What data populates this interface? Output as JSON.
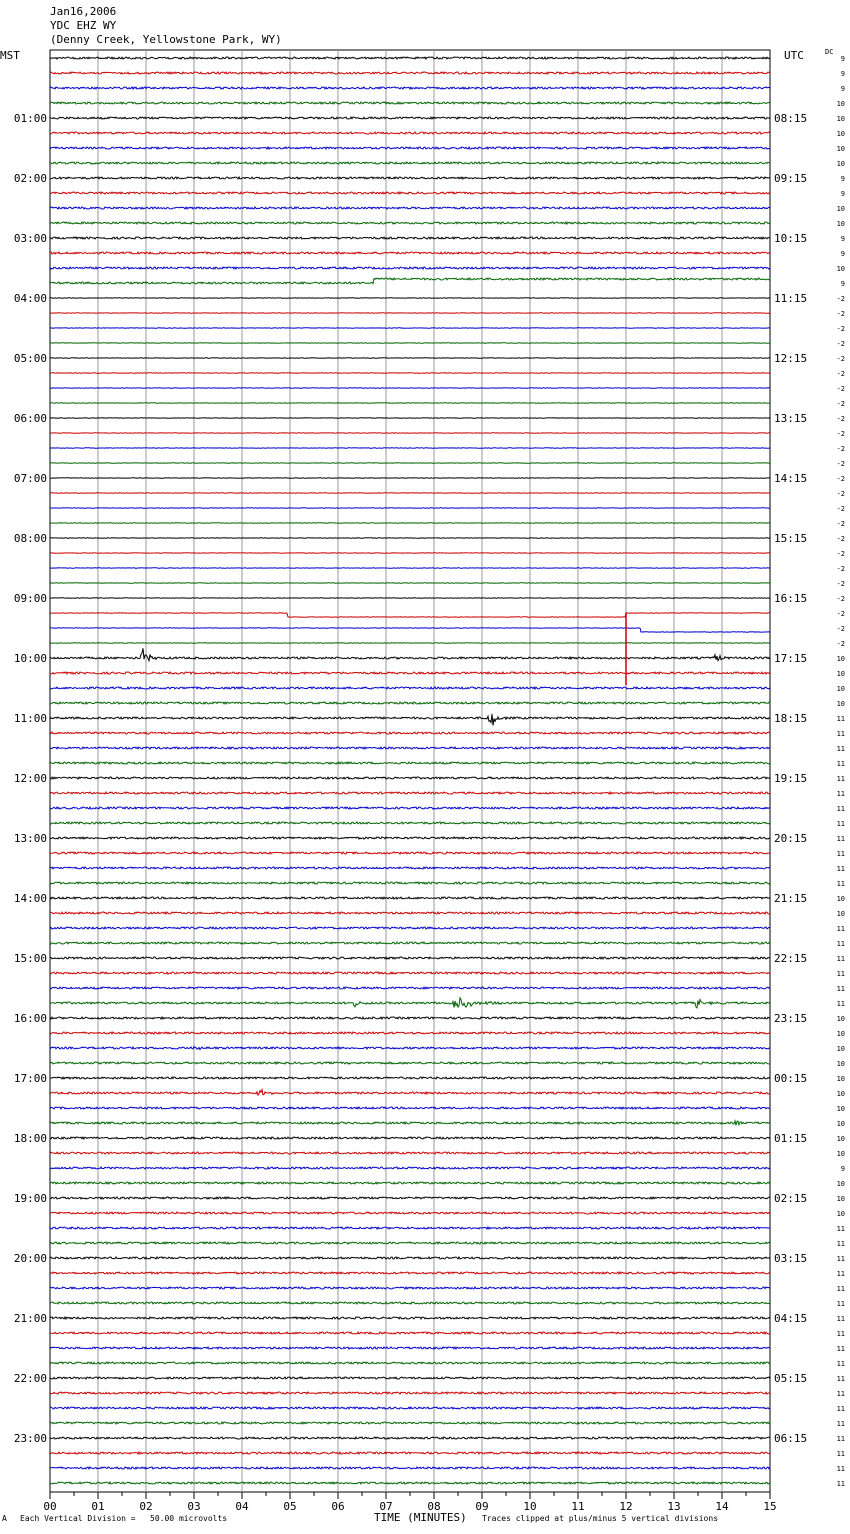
{
  "header": {
    "date": "Jan16,2006",
    "station": "YDC EHZ WY",
    "location": "(Denny Creek, Yellowstone Park, WY)"
  },
  "left_tz": "MST",
  "right_tz": "UTC",
  "dc_label": "DC",
  "footer": {
    "mark": "A",
    "scale": "Each Vertical Division =   50.00 microvolts",
    "xlabel": "TIME (MINUTES)",
    "clip": "Traces clipped at plus/minus 5 vertical divisions"
  },
  "colors": [
    "#000000",
    "#cc0000",
    "#0000cc",
    "#006600"
  ],
  "chart_data": {
    "type": "line",
    "xlabel": "TIME (MINUTES)",
    "xlim": [
      0,
      15
    ],
    "x_ticks": [
      "00",
      "01",
      "02",
      "03",
      "04",
      "05",
      "06",
      "07",
      "08",
      "09",
      "10",
      "11",
      "12",
      "13",
      "14",
      "15"
    ],
    "row_count": 96,
    "left_hour_labels": [
      "",
      "01:00",
      "02:00",
      "03:00",
      "04:00",
      "05:00",
      "06:00",
      "07:00",
      "08:00",
      "09:00",
      "10:00",
      "11:00",
      "12:00",
      "13:00",
      "14:00",
      "15:00",
      "16:00",
      "17:00",
      "18:00",
      "19:00",
      "20:00",
      "21:00",
      "22:00",
      "23:00"
    ],
    "right_hour_labels": [
      "",
      "08:15",
      "09:15",
      "10:15",
      "11:15",
      "12:15",
      "13:15",
      "14:15",
      "15:15",
      "16:15",
      "17:15",
      "18:15",
      "19:15",
      "20:15",
      "21:15",
      "22:15",
      "23:15",
      "00:15",
      "01:15",
      "02:15",
      "03:15",
      "04:15",
      "05:15",
      "06:15"
    ],
    "dc_offsets": [
      9,
      9,
      9,
      10,
      10,
      10,
      10,
      10,
      9,
      9,
      10,
      10,
      9,
      9,
      10,
      9,
      -2,
      -2,
      -2,
      -2,
      -2,
      -2,
      -2,
      -2,
      -2,
      -2,
      -2,
      -2,
      -2,
      -2,
      -2,
      -2,
      -2,
      -2,
      -2,
      -2,
      -2,
      -2,
      -2,
      -2,
      10,
      10,
      10,
      10,
      11,
      11,
      11,
      11,
      11,
      11,
      11,
      11,
      11,
      11,
      11,
      11,
      10,
      10,
      11,
      11,
      11,
      11,
      11,
      11,
      10,
      10,
      10,
      10,
      10,
      10,
      10,
      10,
      10,
      10,
      9,
      10,
      10,
      10,
      11,
      11,
      11,
      11,
      11,
      11,
      11,
      11,
      11,
      11,
      11,
      11,
      11,
      11,
      11,
      11,
      11,
      11
    ],
    "events": [
      {
        "row": 40,
        "minute": 1.9,
        "amp": 14,
        "dur": 0.35
      },
      {
        "row": 40,
        "minute": 13.85,
        "amp": 6,
        "dur": 0.25
      },
      {
        "row": 44,
        "minute": 9.15,
        "amp": 14,
        "dur": 0.35
      },
      {
        "row": 63,
        "minute": 6.3,
        "amp": 4,
        "dur": 0.5
      },
      {
        "row": 63,
        "minute": 8.4,
        "amp": 8,
        "dur": 1.0
      },
      {
        "row": 63,
        "minute": 13.45,
        "amp": 6,
        "dur": 0.4
      },
      {
        "row": 66,
        "minute": 3.0,
        "amp": 3,
        "dur": 0.3
      },
      {
        "row": 69,
        "minute": 4.35,
        "amp": 6,
        "dur": 0.3
      },
      {
        "row": 71,
        "minute": 14.3,
        "amp": 5,
        "dur": 0.2
      }
    ],
    "steps": [
      {
        "row": 15,
        "minute": 6.75,
        "shift": -4
      },
      {
        "row": 37,
        "minute": 4.95,
        "shift": 4
      },
      {
        "row": 37,
        "minute": 12.0,
        "shift": -4
      },
      {
        "row": 38,
        "minute": 12.3,
        "shift": 4
      }
    ],
    "spikes": [
      {
        "row": 37,
        "minute": 12.0,
        "length": 72
      }
    ]
  }
}
